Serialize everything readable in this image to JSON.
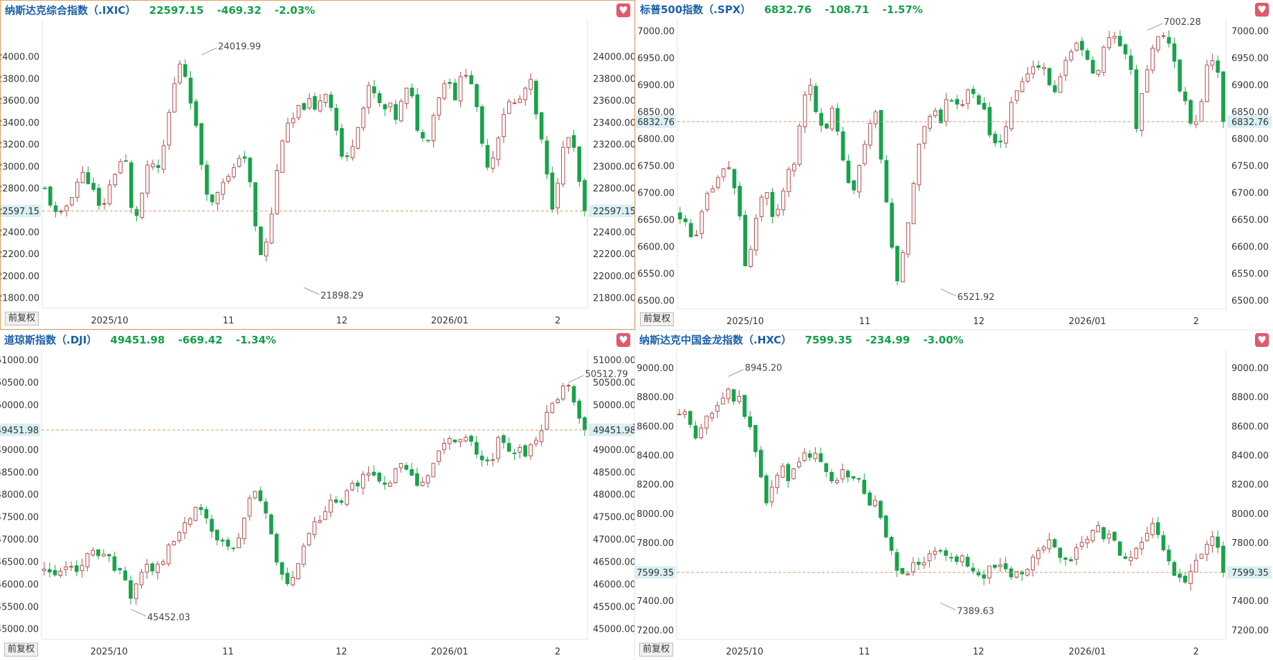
{
  "panels": [
    {
      "name": "纳斯达克综合指数（.IXIC）",
      "price": "22597.15",
      "change": "-469.32",
      "pct": "-2.03%",
      "adjust_label": "前复权",
      "chart_data": {
        "type": "candlestick",
        "y_ticks": [
          "24000.00",
          "23800.00",
          "23600.00",
          "23400.00",
          "23200.00",
          "23000.00",
          "22800.00",
          "22600.00",
          "22400.00",
          "22200.00",
          "22000.00",
          "21800.00"
        ],
        "ylim": [
          21710,
          24300
        ],
        "x_labels": [
          {
            "label": "2025/10",
            "i": 12
          },
          {
            "label": "11",
            "i": 34
          },
          {
            "label": "12",
            "i": 55
          },
          {
            "label": "2026/01",
            "i": 75
          },
          {
            "label": "2",
            "i": 95
          }
        ],
        "last_price": 22597.15,
        "last_label": "22597.15",
        "high_label": {
          "text": "24019.99",
          "i": 29
        },
        "low_label": {
          "text": "21898.29",
          "i": 48
        },
        "n": 101,
        "seed": 11,
        "path": [
          22790,
          22650,
          22500,
          22620,
          22760,
          22890,
          22950,
          22800,
          22620,
          22700,
          22900,
          23050,
          23030,
          22500,
          22620,
          22950,
          23030,
          22920,
          23350,
          23700,
          23950,
          23820,
          23500,
          23100,
          22800,
          22620,
          22900,
          22880,
          22950,
          23150,
          23050,
          22500,
          22200,
          22320,
          22750,
          23250,
          23350,
          23450,
          23550,
          23600,
          23500,
          23650,
          23700,
          23400,
          23100,
          23050,
          23350,
          23500,
          23700,
          23650,
          23500,
          23550,
          23450,
          23600,
          23750,
          23400,
          23250,
          23300,
          23600,
          23750,
          23800,
          23600,
          23900,
          23850,
          23500,
          23100,
          23000,
          23250,
          23500,
          23600,
          23550,
          23700,
          23750,
          23400,
          23100,
          22600,
          22900,
          23200,
          23300,
          22900,
          22597
        ]
      }
    },
    {
      "name": "标普500指数（.SPX）",
      "price": "6832.76",
      "change": "-108.71",
      "pct": "-1.57%",
      "adjust_label": "前复权",
      "chart_data": {
        "type": "candlestick",
        "y_ticks": [
          "7000.00",
          "6950.00",
          "6900.00",
          "6850.00",
          "6800.00",
          "6750.00",
          "6700.00",
          "6650.00",
          "6600.00",
          "6550.00",
          "6500.00"
        ],
        "ylim": [
          6485,
          7015
        ],
        "x_labels": [
          {
            "label": "2025/10",
            "i": 12
          },
          {
            "label": "11",
            "i": 34
          },
          {
            "label": "12",
            "i": 55
          },
          {
            "label": "2026/01",
            "i": 75
          },
          {
            "label": "2",
            "i": 95
          }
        ],
        "last_price": 6832.76,
        "last_label": "6832.76",
        "high_label": {
          "text": "7002.28",
          "i": 86
        },
        "low_label": {
          "text": "6521.92",
          "i": 48
        },
        "n": 101,
        "seed": 23,
        "path": [
          6660,
          6640,
          6600,
          6660,
          6700,
          6720,
          6740,
          6750,
          6690,
          6560,
          6610,
          6680,
          6700,
          6640,
          6700,
          6750,
          6760,
          6880,
          6890,
          6850,
          6820,
          6850,
          6800,
          6720,
          6700,
          6760,
          6830,
          6850,
          6740,
          6620,
          6540,
          6600,
          6700,
          6800,
          6830,
          6860,
          6840,
          6880,
          6870,
          6860,
          6900,
          6880,
          6850,
          6800,
          6780,
          6830,
          6870,
          6900,
          6920,
          6930,
          6950,
          6900,
          6880,
          6940,
          6960,
          6980,
          6950,
          6920,
          6940,
          6990,
          7000,
          6970,
          6950,
          6830,
          6900,
          6960,
          6990,
          7000,
          6950,
          6900,
          6850,
          6820,
          6880,
          6960,
          6950,
          6832
        ]
      }
    },
    {
      "name": "道琼斯指数（.DJI）",
      "price": "49451.98",
      "change": "-669.42",
      "pct": "-1.34%",
      "adjust_label": "前复权",
      "chart_data": {
        "type": "candlestick",
        "y_ticks": [
          "51000.00",
          "50500.00",
          "50000.00",
          "49500.00",
          "49000.00",
          "48500.00",
          "48000.00",
          "47500.00",
          "47000.00",
          "46500.00",
          "46000.00",
          "45500.00",
          "45000.00"
        ],
        "ylim": [
          44780,
          51150
        ],
        "x_labels": [
          {
            "label": "2025/10",
            "i": 12
          },
          {
            "label": "11",
            "i": 34
          },
          {
            "label": "12",
            "i": 55
          },
          {
            "label": "2026/01",
            "i": 75
          },
          {
            "label": "2",
            "i": 95
          }
        ],
        "last_price": 49451.98,
        "last_label": "49451.98",
        "high_label": {
          "text": "50512.79",
          "i": 97
        },
        "low_label": {
          "text": "45452.03",
          "i": 16
        },
        "n": 101,
        "seed": 37,
        "path": [
          46300,
          46150,
          46200,
          46300,
          46400,
          46500,
          46700,
          46650,
          46600,
          46400,
          46100,
          45800,
          46150,
          46400,
          46300,
          46600,
          46800,
          47100,
          47400,
          47700,
          47600,
          47300,
          47000,
          46900,
          46800,
          47200,
          47800,
          48000,
          47700,
          47100,
          46300,
          45900,
          46200,
          46800,
          47200,
          47500,
          47600,
          47900,
          47800,
          48100,
          48300,
          48600,
          48400,
          48200,
          48300,
          48500,
          48700,
          48400,
          48200,
          48500,
          48900,
          49100,
          49300,
          49250,
          49200,
          49000,
          48700,
          48800,
          49200,
          49100,
          49050,
          48900,
          49000,
          49400,
          49700,
          50000,
          50300,
          50400,
          49800,
          49452
        ]
      }
    },
    {
      "name": "纳斯达克中国金龙指数（.HXC）",
      "price": "7599.35",
      "change": "-234.99",
      "pct": "-3.00%",
      "adjust_label": "前复权",
      "chart_data": {
        "type": "candlestick",
        "y_ticks": [
          "9000.00",
          "8800.00",
          "8600.00",
          "8400.00",
          "8200.00",
          "8000.00",
          "7800.00",
          "7600.00",
          "7400.00",
          "7200.00"
        ],
        "ylim": [
          7140,
          9100
        ],
        "x_labels": [
          {
            "label": "2025/10",
            "i": 12
          },
          {
            "label": "11",
            "i": 34
          },
          {
            "label": "12",
            "i": 55
          },
          {
            "label": "2026/01",
            "i": 75
          },
          {
            "label": "2",
            "i": 95
          }
        ],
        "last_price": 7599.35,
        "last_label": "7599.35",
        "high_label": {
          "text": "8945.20",
          "i": 9
        },
        "low_label": {
          "text": "7389.63",
          "i": 48
        },
        "n": 101,
        "seed": 53,
        "path": [
          8700,
          8650,
          8550,
          8650,
          8700,
          8750,
          8850,
          8800,
          8750,
          8600,
          8300,
          8100,
          8200,
          8300,
          8250,
          8350,
          8400,
          8450,
          8350,
          8250,
          8200,
          8300,
          8250,
          8200,
          8100,
          8050,
          7900,
          7700,
          7550,
          7600,
          7650,
          7700,
          7750,
          7750,
          7700,
          7650,
          7750,
          7600,
          7550,
          7600,
          7650,
          7650,
          7600,
          7580,
          7650,
          7700,
          7750,
          7800,
          7700,
          7650,
          7720,
          7780,
          7850,
          7900,
          7850,
          7800,
          7750,
          7680,
          7750,
          7850,
          7900,
          7800,
          7700,
          7550,
          7500,
          7600,
          7700,
          7800,
          7850,
          7599
        ]
      }
    }
  ],
  "colors": {
    "up": "#b54a4a",
    "down": "#18a34a",
    "price_line": "#d9956a",
    "last_bg": "#d9eff3",
    "last_text": "#2a7f7a"
  }
}
